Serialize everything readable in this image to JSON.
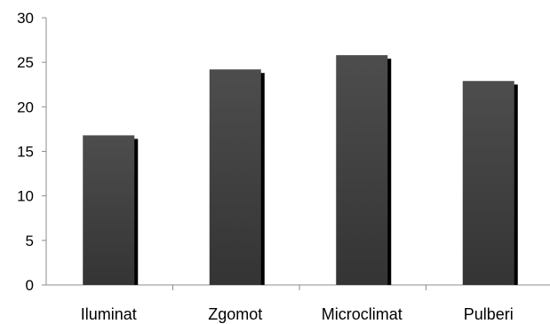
{
  "chart_data": {
    "type": "bar",
    "title": "",
    "xlabel": "",
    "ylabel": "",
    "categories": [
      "Iluminat",
      "Zgomot",
      "Microclimat",
      "Pulberi"
    ],
    "values": [
      16.8,
      24.2,
      25.8,
      22.9
    ],
    "ylim": [
      0,
      30
    ],
    "yticks": [
      "0",
      "5",
      "10",
      "15",
      "20",
      "25",
      "30"
    ],
    "grid": false,
    "legend": "none",
    "bar_color": "#454545",
    "shadow_color": "#000000"
  }
}
